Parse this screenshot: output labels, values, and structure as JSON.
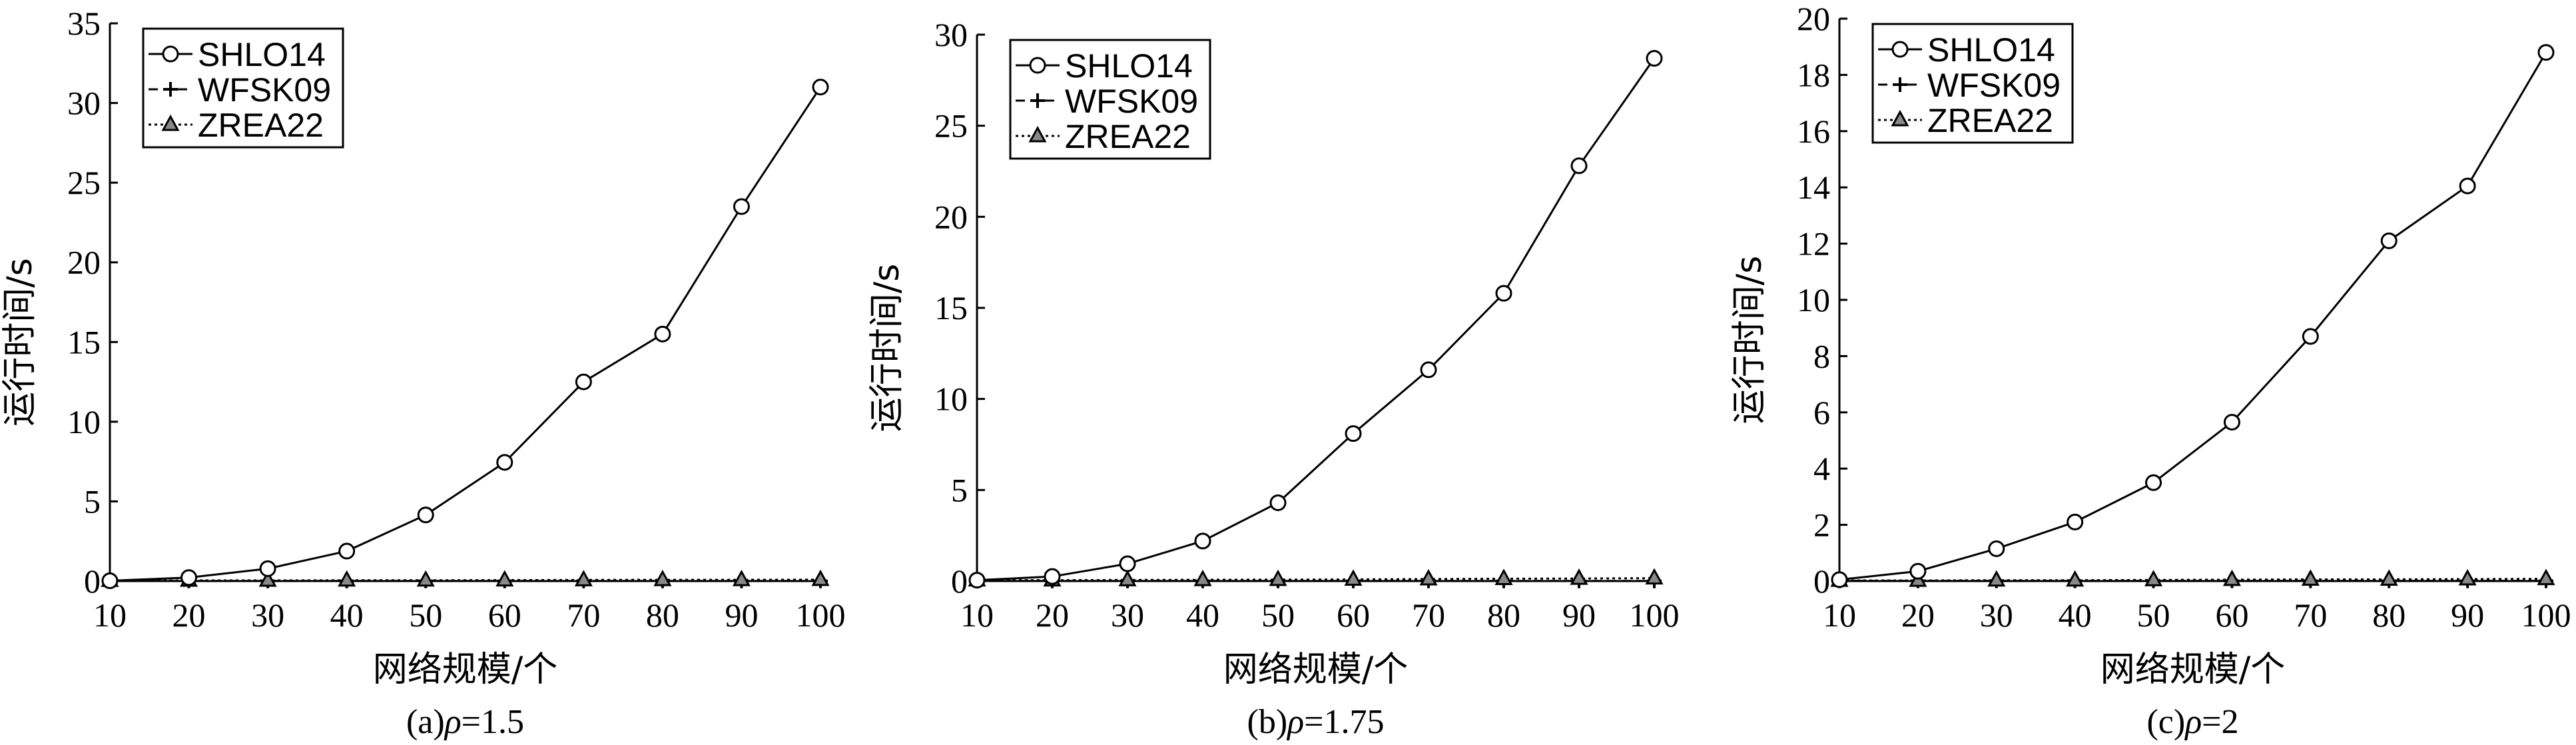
{
  "chart_data": [
    {
      "type": "line",
      "caption_prefix": "(a)",
      "caption_symbol": "ρ",
      "caption_value": "=1.5",
      "xlabel": "网络规模/个",
      "ylabel": "运行时间/s",
      "xlim": [
        10,
        100
      ],
      "ylim": [
        0,
        35
      ],
      "x_ticks": [
        10,
        20,
        30,
        40,
        50,
        60,
        70,
        80,
        90,
        100
      ],
      "y_ticks": [
        0,
        5,
        10,
        15,
        20,
        25,
        30,
        35
      ],
      "legend_position": "top-left",
      "x": [
        10,
        20,
        30,
        40,
        50,
        60,
        70,
        80,
        90,
        100
      ],
      "series": [
        {
          "name": "SHLO14",
          "marker": "circle",
          "dash": "solid",
          "values": [
            0.02,
            0.22,
            0.78,
            1.88,
            4.15,
            7.45,
            12.5,
            15.5,
            23.5,
            31.0
          ]
        },
        {
          "name": "WFSK09",
          "marker": "plus",
          "dash": "dashed",
          "values": [
            0.01,
            0.01,
            0.01,
            0.01,
            0.01,
            0.01,
            0.01,
            0.01,
            0.01,
            0.01
          ]
        },
        {
          "name": "ZREA22",
          "marker": "triangle",
          "dash": "dotted",
          "values": [
            0.03,
            0.04,
            0.04,
            0.05,
            0.05,
            0.06,
            0.07,
            0.08,
            0.08,
            0.09
          ]
        }
      ]
    },
    {
      "type": "line",
      "caption_prefix": "(b)",
      "caption_symbol": "ρ",
      "caption_value": "=1.75",
      "xlabel": "网络规模/个",
      "ylabel": "运行时间/s",
      "xlim": [
        10,
        100
      ],
      "ylim": [
        0,
        30
      ],
      "x_ticks": [
        10,
        20,
        30,
        40,
        50,
        60,
        70,
        80,
        90,
        100
      ],
      "y_ticks": [
        0,
        5,
        10,
        15,
        20,
        25,
        30
      ],
      "legend_position": "top-left",
      "x": [
        10,
        20,
        30,
        40,
        50,
        60,
        70,
        80,
        90,
        100
      ],
      "series": [
        {
          "name": "SHLO14",
          "marker": "circle",
          "dash": "solid",
          "values": [
            0.05,
            0.25,
            0.95,
            2.2,
            4.3,
            8.1,
            11.6,
            15.8,
            22.8,
            28.7
          ]
        },
        {
          "name": "WFSK09",
          "marker": "plus",
          "dash": "dashed",
          "values": [
            0.01,
            0.01,
            0.01,
            0.01,
            0.01,
            0.01,
            0.01,
            0.01,
            0.01,
            0.01
          ]
        },
        {
          "name": "ZREA22",
          "marker": "triangle",
          "dash": "dotted",
          "values": [
            0.05,
            0.05,
            0.06,
            0.07,
            0.08,
            0.09,
            0.11,
            0.13,
            0.14,
            0.16
          ]
        }
      ]
    },
    {
      "type": "line",
      "caption_prefix": "(c)",
      "caption_symbol": "ρ",
      "caption_value": "=2",
      "xlabel": "网络规模/个",
      "ylabel": "运行时间/s",
      "xlim": [
        10,
        100
      ],
      "ylim": [
        0,
        20
      ],
      "x_ticks": [
        10,
        20,
        30,
        40,
        50,
        60,
        70,
        80,
        90,
        100
      ],
      "y_ticks": [
        0,
        2,
        4,
        6,
        8,
        10,
        12,
        14,
        16,
        18,
        20
      ],
      "legend_position": "top-left",
      "x": [
        10,
        20,
        30,
        40,
        50,
        60,
        70,
        80,
        90,
        100
      ],
      "series": [
        {
          "name": "SHLO14",
          "marker": "circle",
          "dash": "solid",
          "values": [
            0.05,
            0.35,
            1.15,
            2.1,
            3.5,
            5.65,
            8.7,
            12.1,
            14.05,
            18.8
          ]
        },
        {
          "name": "WFSK09",
          "marker": "plus",
          "dash": "dashed",
          "values": [
            0.01,
            0.01,
            0.01,
            0.01,
            0.01,
            0.01,
            0.01,
            0.01,
            0.01,
            0.01
          ]
        },
        {
          "name": "ZREA22",
          "marker": "triangle",
          "dash": "dotted",
          "values": [
            0.02,
            0.02,
            0.03,
            0.03,
            0.04,
            0.05,
            0.06,
            0.06,
            0.07,
            0.08
          ]
        }
      ]
    }
  ]
}
